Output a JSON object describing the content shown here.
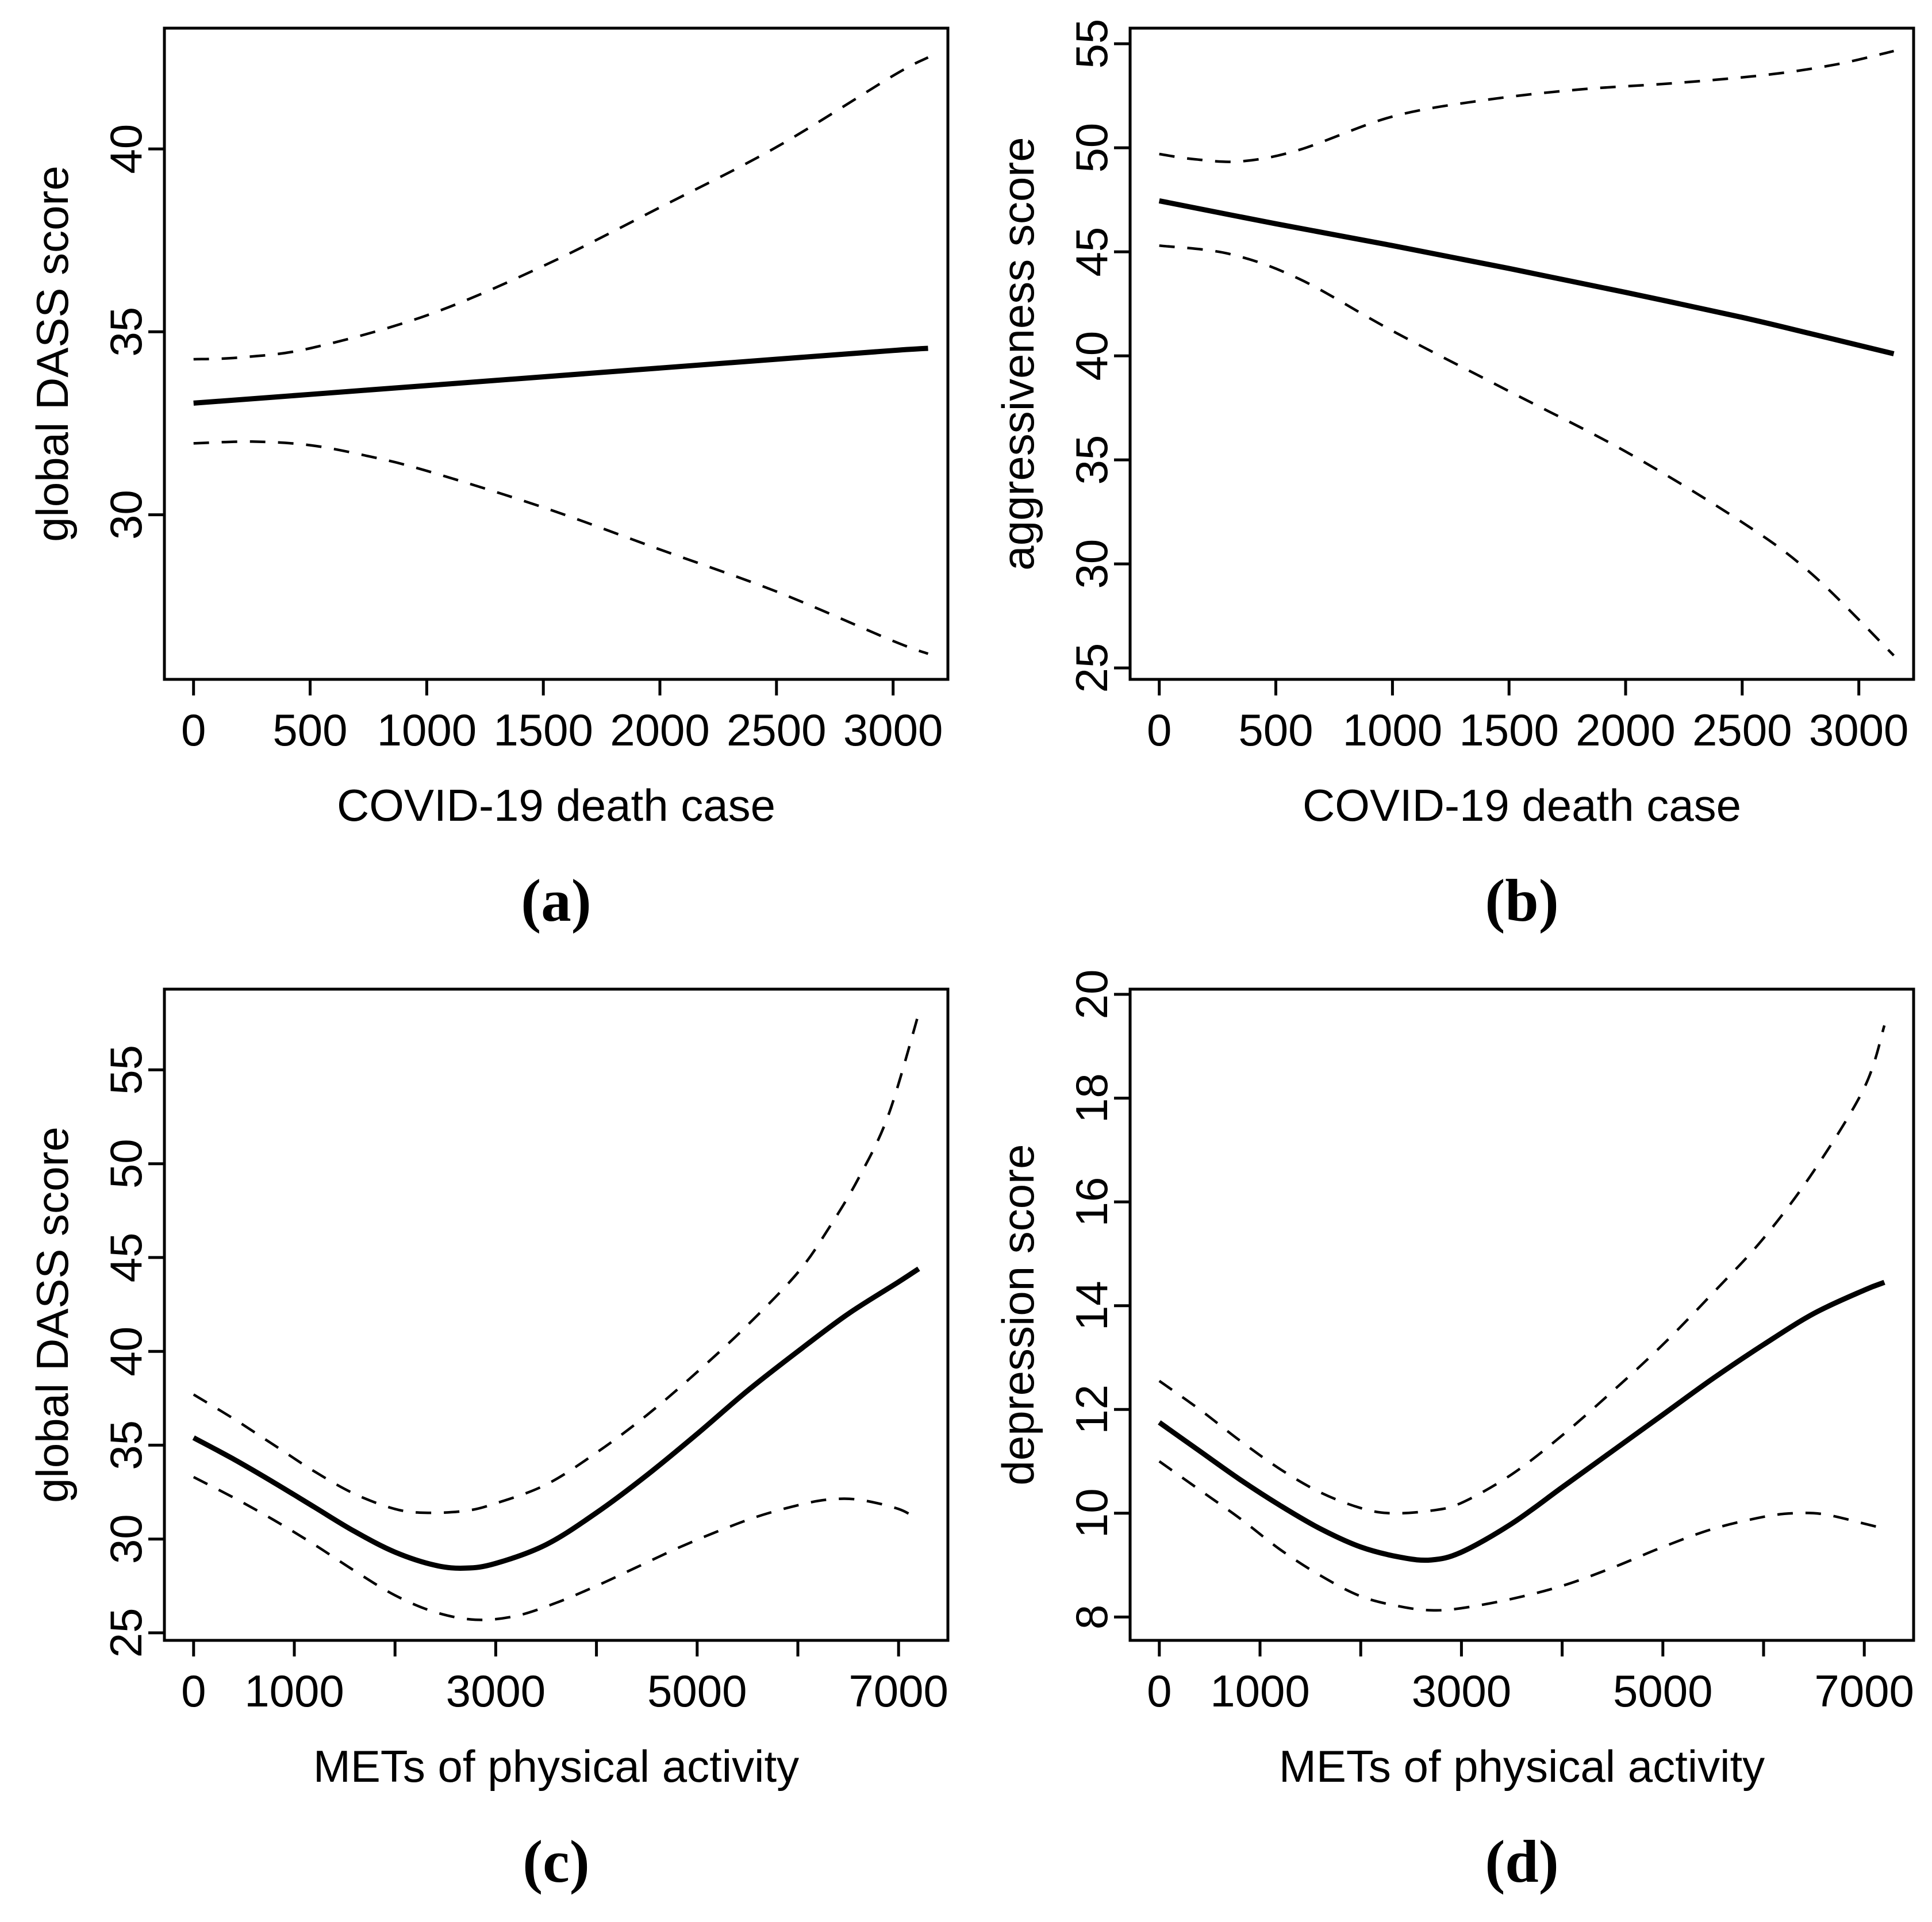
{
  "figure": {
    "background_color": "#ffffff",
    "ink_color": "#000000",
    "description_counts": {
      "panels": 4,
      "series_per_panel": 3
    }
  },
  "chart_data": [
    {
      "id": "a",
      "type": "line",
      "caption": "(a)",
      "xlabel": "COVID-19 death case",
      "ylabel": "global DASS score",
      "xlim": [
        -125,
        3235
      ],
      "ylim": [
        25.5,
        43.3
      ],
      "xticks": [
        0,
        500,
        1000,
        1500,
        2000,
        2500,
        3000
      ],
      "xtick_labels": [
        "0",
        "500",
        "1000",
        "1500",
        "2000",
        "2500",
        "3000"
      ],
      "yticks": [
        30,
        35,
        40
      ],
      "grid": false,
      "legend": null,
      "series": [
        {
          "name": "fitted estimate",
          "line_style": "solid",
          "points": [
            [
              0,
              33.05
            ],
            [
              500,
              33.29
            ],
            [
              1000,
              33.53
            ],
            [
              1500,
              33.77
            ],
            [
              2000,
              34.01
            ],
            [
              2500,
              34.25
            ],
            [
              3000,
              34.49
            ],
            [
              3150,
              34.55
            ]
          ]
        },
        {
          "name": "upper 95% confidence bound",
          "line_style": "dashed",
          "points": [
            [
              0,
              34.25
            ],
            [
              200,
              34.3
            ],
            [
              500,
              34.55
            ],
            [
              1000,
              35.45
            ],
            [
              1500,
              36.8
            ],
            [
              2000,
              38.4
            ],
            [
              2500,
              40.05
            ],
            [
              3000,
              42.0
            ],
            [
              3150,
              42.5
            ]
          ]
        },
        {
          "name": "lower 95% confidence bound",
          "line_style": "dashed",
          "points": [
            [
              0,
              31.95
            ],
            [
              250,
              32.0
            ],
            [
              500,
              31.9
            ],
            [
              750,
              31.6
            ],
            [
              1000,
              31.2
            ],
            [
              1500,
              30.2
            ],
            [
              2000,
              29.05
            ],
            [
              2500,
              27.9
            ],
            [
              3000,
              26.55
            ],
            [
              3150,
              26.2
            ]
          ]
        }
      ]
    },
    {
      "id": "b",
      "type": "line",
      "caption": "(b)",
      "xlabel": "COVID-19 death case",
      "ylabel": "aggressiveness score",
      "xlim": [
        -125,
        3235
      ],
      "ylim": [
        24.45,
        55.75
      ],
      "xticks": [
        0,
        500,
        1000,
        1500,
        2000,
        2500,
        3000
      ],
      "xtick_labels": [
        "0",
        "500",
        "1000",
        "1500",
        "2000",
        "2500",
        "3000"
      ],
      "yticks": [
        25,
        30,
        35,
        40,
        45,
        50,
        55
      ],
      "grid": false,
      "legend": null,
      "series": [
        {
          "name": "fitted estimate",
          "line_style": "solid",
          "points": [
            [
              0,
              47.45
            ],
            [
              500,
              46.35
            ],
            [
              1000,
              45.3
            ],
            [
              1500,
              44.2
            ],
            [
              2000,
              43.05
            ],
            [
              2500,
              41.85
            ],
            [
              2800,
              41.05
            ],
            [
              3150,
              40.1
            ]
          ]
        },
        {
          "name": "upper 95% confidence bound",
          "line_style": "dashed",
          "points": [
            [
              0,
              49.7
            ],
            [
              150,
              49.45
            ],
            [
              350,
              49.35
            ],
            [
              600,
              49.9
            ],
            [
              1000,
              51.5
            ],
            [
              1400,
              52.3
            ],
            [
              1800,
              52.8
            ],
            [
              2200,
              53.1
            ],
            [
              2600,
              53.5
            ],
            [
              2900,
              54.0
            ],
            [
              3150,
              54.65
            ]
          ]
        },
        {
          "name": "lower 95% confidence bound",
          "line_style": "dashed",
          "points": [
            [
              0,
              45.3
            ],
            [
              300,
              44.9
            ],
            [
              600,
              43.7
            ],
            [
              1000,
              41.2
            ],
            [
              1500,
              38.3
            ],
            [
              2000,
              35.4
            ],
            [
              2500,
              32.0
            ],
            [
              2800,
              29.5
            ],
            [
              3150,
              25.6
            ]
          ]
        }
      ]
    },
    {
      "id": "c",
      "type": "line",
      "caption": "(c)",
      "xlabel": "METs of physical activity",
      "ylabel": "global DASS score",
      "xlim": [
        -290,
        7490
      ],
      "ylim": [
        24.6,
        59.3
      ],
      "xticks": [
        0,
        1000,
        2000,
        3000,
        4000,
        5000,
        6000,
        7000
      ],
      "xtick_labels": [
        "0",
        "1000",
        "",
        "3000",
        "",
        "5000",
        "",
        "7000"
      ],
      "yticks": [
        25,
        30,
        35,
        40,
        45,
        50,
        55
      ],
      "grid": false,
      "legend": null,
      "series": [
        {
          "name": "fitted estimate",
          "line_style": "solid",
          "points": [
            [
              0,
              35.4
            ],
            [
              400,
              34.25
            ],
            [
              800,
              33.0
            ],
            [
              1200,
              31.7
            ],
            [
              1600,
              30.4
            ],
            [
              2000,
              29.3
            ],
            [
              2400,
              28.6
            ],
            [
              2700,
              28.45
            ],
            [
              3000,
              28.7
            ],
            [
              3500,
              29.7
            ],
            [
              4000,
              31.4
            ],
            [
              4500,
              33.4
            ],
            [
              5000,
              35.6
            ],
            [
              5500,
              37.9
            ],
            [
              6000,
              40.0
            ],
            [
              6500,
              42.0
            ],
            [
              7000,
              43.7
            ],
            [
              7200,
              44.4
            ]
          ]
        },
        {
          "name": "upper 95% confidence bound",
          "line_style": "dashed",
          "points": [
            [
              0,
              37.7
            ],
            [
              400,
              36.4
            ],
            [
              800,
              35.0
            ],
            [
              1200,
              33.6
            ],
            [
              1600,
              32.4
            ],
            [
              2000,
              31.6
            ],
            [
              2300,
              31.4
            ],
            [
              2700,
              31.5
            ],
            [
              3000,
              31.9
            ],
            [
              3500,
              32.9
            ],
            [
              4000,
              34.6
            ],
            [
              4500,
              36.6
            ],
            [
              5000,
              38.9
            ],
            [
              5500,
              41.4
            ],
            [
              6000,
              44.2
            ],
            [
              6300,
              46.5
            ],
            [
              6600,
              49.2
            ],
            [
              6900,
              52.6
            ],
            [
              7200,
              58.0
            ]
          ]
        },
        {
          "name": "lower 95% confidence bound",
          "line_style": "dashed",
          "points": [
            [
              0,
              33.3
            ],
            [
              400,
              32.2
            ],
            [
              800,
              31.0
            ],
            [
              1200,
              29.7
            ],
            [
              1600,
              28.3
            ],
            [
              2000,
              27.0
            ],
            [
              2400,
              26.1
            ],
            [
              2800,
              25.7
            ],
            [
              3200,
              25.9
            ],
            [
              3600,
              26.6
            ],
            [
              4000,
              27.5
            ],
            [
              4400,
              28.5
            ],
            [
              4800,
              29.5
            ],
            [
              5200,
              30.4
            ],
            [
              5600,
              31.2
            ],
            [
              6000,
              31.8
            ],
            [
              6300,
              32.1
            ],
            [
              6600,
              32.1
            ],
            [
              7000,
              31.6
            ],
            [
              7200,
              31.0
            ]
          ]
        }
      ]
    },
    {
      "id": "d",
      "type": "line",
      "caption": "(d)",
      "xlabel": "METs of physical activity",
      "ylabel": "depression score",
      "xlim": [
        -290,
        7490
      ],
      "ylim": [
        7.55,
        20.1
      ],
      "xticks": [
        0,
        1000,
        2000,
        3000,
        4000,
        5000,
        6000,
        7000
      ],
      "xtick_labels": [
        "0",
        "1000",
        "",
        "3000",
        "",
        "5000",
        "",
        "7000"
      ],
      "yticks": [
        8,
        10,
        12,
        14,
        16,
        18,
        20
      ],
      "grid": false,
      "legend": null,
      "series": [
        {
          "name": "fitted estimate",
          "line_style": "solid",
          "points": [
            [
              0,
              11.75
            ],
            [
              400,
              11.2
            ],
            [
              800,
              10.65
            ],
            [
              1200,
              10.15
            ],
            [
              1600,
              9.7
            ],
            [
              2000,
              9.35
            ],
            [
              2400,
              9.15
            ],
            [
              2700,
              9.1
            ],
            [
              3000,
              9.25
            ],
            [
              3500,
              9.8
            ],
            [
              4000,
              10.5
            ],
            [
              4500,
              11.2
            ],
            [
              5000,
              11.9
            ],
            [
              5500,
              12.6
            ],
            [
              6000,
              13.25
            ],
            [
              6500,
              13.85
            ],
            [
              7000,
              14.3
            ],
            [
              7200,
              14.45
            ]
          ]
        },
        {
          "name": "upper 95% confidence bound",
          "line_style": "dashed",
          "points": [
            [
              0,
              12.55
            ],
            [
              400,
              12.0
            ],
            [
              800,
              11.4
            ],
            [
              1200,
              10.85
            ],
            [
              1600,
              10.4
            ],
            [
              2000,
              10.1
            ],
            [
              2300,
              10.0
            ],
            [
              2700,
              10.05
            ],
            [
              3000,
              10.2
            ],
            [
              3500,
              10.75
            ],
            [
              4000,
              11.5
            ],
            [
              4500,
              12.35
            ],
            [
              5000,
              13.25
            ],
            [
              5500,
              14.25
            ],
            [
              6000,
              15.3
            ],
            [
              6500,
              16.6
            ],
            [
              7000,
              18.2
            ],
            [
              7200,
              19.4
            ]
          ]
        },
        {
          "name": "lower 95% confidence bound",
          "line_style": "dashed",
          "points": [
            [
              0,
              11.0
            ],
            [
              400,
              10.45
            ],
            [
              800,
              9.9
            ],
            [
              1200,
              9.3
            ],
            [
              1600,
              8.8
            ],
            [
              2000,
              8.4
            ],
            [
              2400,
              8.2
            ],
            [
              2700,
              8.13
            ],
            [
              3000,
              8.17
            ],
            [
              3500,
              8.35
            ],
            [
              4000,
              8.6
            ],
            [
              4500,
              8.95
            ],
            [
              5000,
              9.35
            ],
            [
              5500,
              9.7
            ],
            [
              6000,
              9.93
            ],
            [
              6300,
              10.0
            ],
            [
              6600,
              9.98
            ],
            [
              7000,
              9.8
            ],
            [
              7200,
              9.7
            ]
          ]
        }
      ]
    }
  ]
}
